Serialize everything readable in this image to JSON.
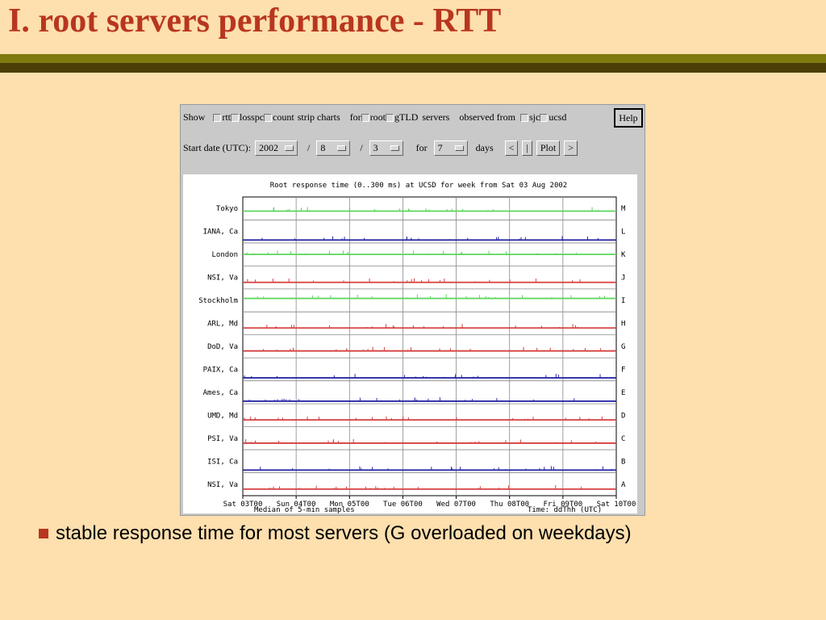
{
  "slide": {
    "title": "I. root servers performance - RTT",
    "bullet": "stable response time for most servers (G overloaded on weekdays)",
    "title_color": "#b8361e"
  },
  "controls": {
    "show_label": "Show",
    "checkboxes": [
      "rtt",
      "losspc",
      "count"
    ],
    "strip_label": "strip charts",
    "for_label": "for",
    "server_types": [
      "root",
      "gTLD"
    ],
    "servers_label": "servers",
    "observed_label": "observed from",
    "sites": [
      "sjc",
      "ucsd"
    ],
    "help": "Help",
    "start_date_label": "Start date (UTC):",
    "year": "2002",
    "month": "8",
    "day": "3",
    "slash": "/",
    "for2_label": "for",
    "days": "7",
    "days_label": "days",
    "prev": "<",
    "now": "|",
    "plot": "Plot",
    "next": ">"
  },
  "chart_data": {
    "type": "line",
    "title": "Root response time (0..300 ms) at UCSD for week from Sat 03 Aug 2002",
    "xlabel": "Median of 5-min samples",
    "xlabel_right": "Time: ddThh (UTC)",
    "ylim": [
      0,
      300
    ],
    "x_ticks": [
      "Sat 03T00",
      "Sun 04T00",
      "Mon 05T00",
      "Tue 06T00",
      "Wed 07T00",
      "Thu 08T00",
      "Fri 09T00",
      "Sat 10T00"
    ],
    "grid": true,
    "strips": [
      {
        "left": "Tokyo",
        "right": "M",
        "color": "#5ad65a",
        "baseline_ms": 110
      },
      {
        "left": "IANA, Ca",
        "right": "L",
        "color": "#2a2aa8",
        "baseline_ms": 20
      },
      {
        "left": "London",
        "right": "K",
        "color": "#5ad65a",
        "baseline_ms": 150
      },
      {
        "left": "NSI, Va",
        "right": "J",
        "color": "#d64040",
        "baseline_ms": 75
      },
      {
        "left": "Stockholm",
        "right": "I",
        "color": "#5ad65a",
        "baseline_ms": 180
      },
      {
        "left": "ARL, Md",
        "right": "H",
        "color": "#d64040",
        "baseline_ms": 80
      },
      {
        "left": "DoD, Va",
        "right": "G",
        "color": "#d64040",
        "baseline_ms": 80
      },
      {
        "left": "PAIX, Ca",
        "right": "F",
        "color": "#2a2aa8",
        "baseline_ms": 20
      },
      {
        "left": "Ames, Ca",
        "right": "E",
        "color": "#2a2aa8",
        "baseline_ms": 15
      },
      {
        "left": "UMD, Md",
        "right": "D",
        "color": "#d64040",
        "baseline_ms": 80
      },
      {
        "left": "PSI, Va",
        "right": "C",
        "color": "#d64040",
        "baseline_ms": 75
      },
      {
        "left": "ISI, Ca",
        "right": "B",
        "color": "#2a2aa8",
        "baseline_ms": 15
      },
      {
        "left": "NSI, Va",
        "right": "A",
        "color": "#d64040",
        "baseline_ms": 75
      }
    ]
  }
}
